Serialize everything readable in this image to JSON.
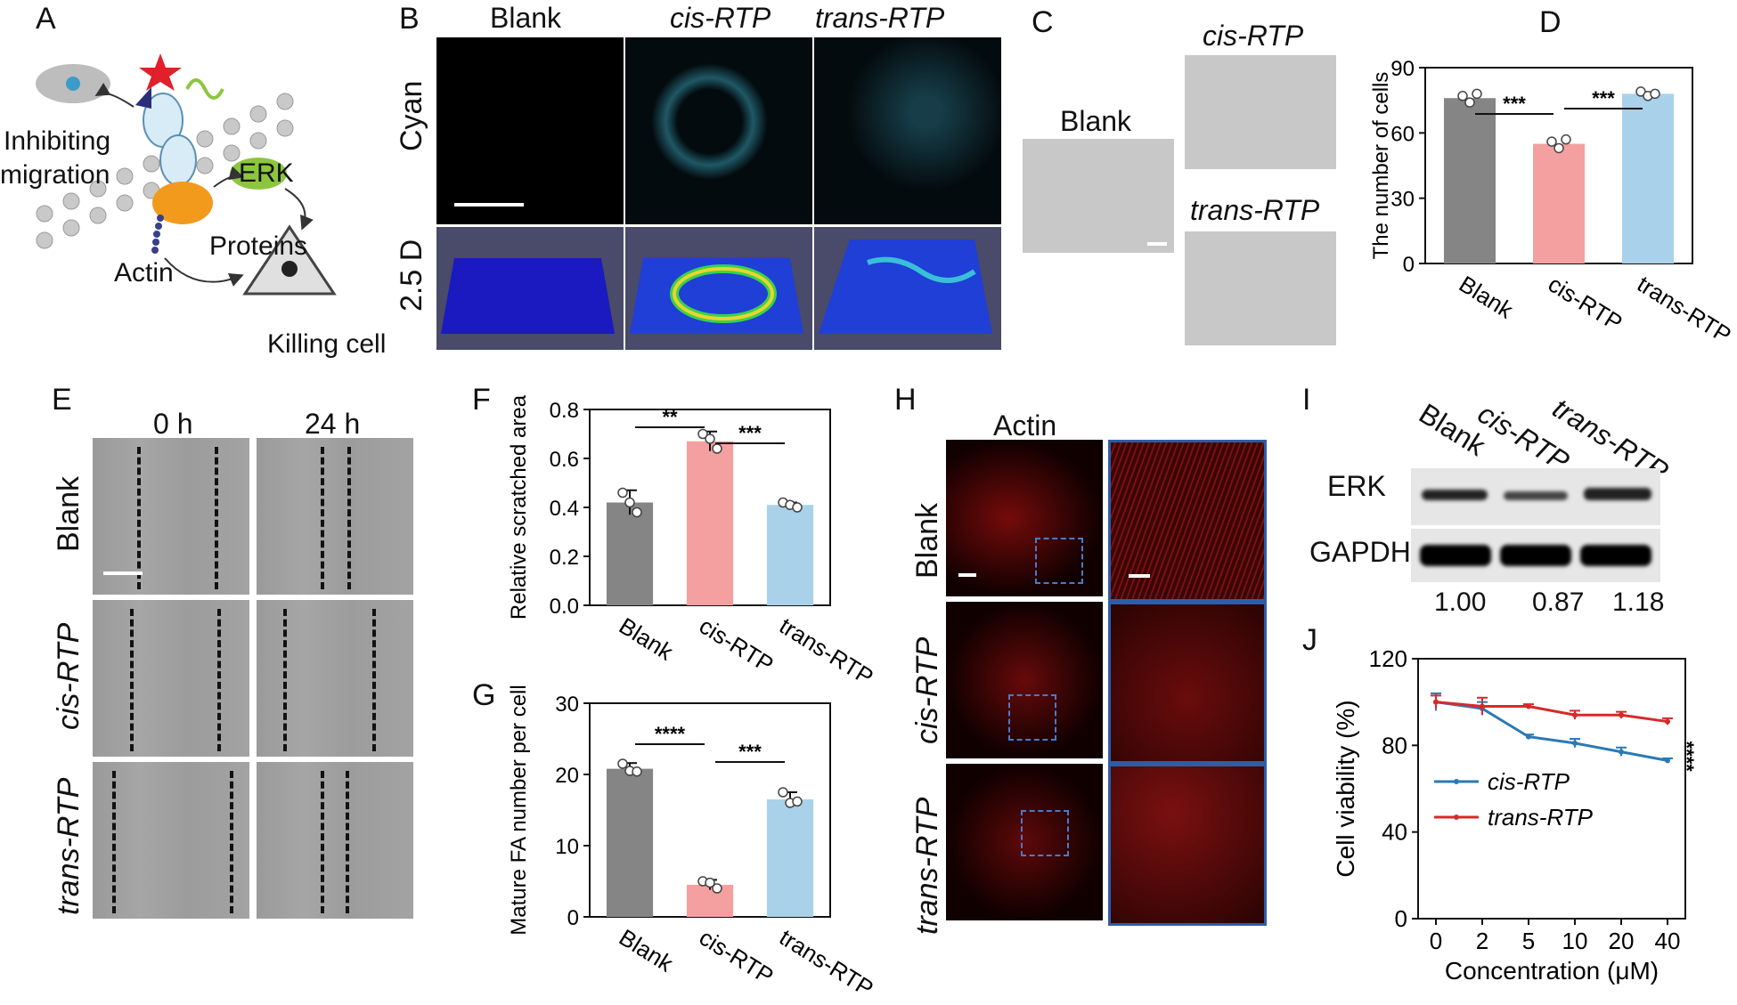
{
  "panels": {
    "A": {
      "letter": "A",
      "labels": {
        "inhibiting": "Inhibiting",
        "migration": "migration",
        "erk": "ERK",
        "proteins": "Proteins",
        "actin": "Actin",
        "killing": "Killing cell"
      }
    },
    "B": {
      "letter": "B",
      "columns": [
        "Blank",
        "cis-RTP",
        "trans-RTP"
      ],
      "rows": [
        "Cyan",
        "2.5 D"
      ]
    },
    "C": {
      "letter": "C",
      "images": [
        "Blank",
        "cis-RTP",
        "trans-RTP"
      ]
    },
    "D": {
      "letter": "D"
    },
    "E": {
      "letter": "E",
      "columns": [
        "0 h",
        "24 h"
      ],
      "rows": [
        "Blank",
        "cis-RTP",
        "trans-RTP"
      ]
    },
    "F": {
      "letter": "F"
    },
    "G": {
      "letter": "G"
    },
    "H": {
      "letter": "H",
      "title": "Actin",
      "rows": [
        "Blank",
        "cis-RTP",
        "trans-RTP"
      ]
    },
    "I": {
      "letter": "I",
      "lanes": [
        "Blank",
        "cis-RTP",
        "trans-RTP"
      ],
      "bands": [
        "ERK",
        "GAPDH"
      ],
      "ratios": [
        "1.00",
        "0.87",
        "1.18"
      ]
    },
    "J": {
      "letter": "J"
    }
  },
  "colors": {
    "blank": "#858585",
    "cis": "#f4a0a0",
    "trans": "#a9d2ea",
    "cis_line": "#2a7ab5",
    "trans_line": "#d62a2a"
  },
  "chart_data": [
    {
      "id": "D",
      "type": "bar",
      "categories": [
        "Blank",
        "cis-RTP",
        "trans-RTP"
      ],
      "values": [
        76,
        55,
        78
      ],
      "points": [
        [
          77,
          74,
          78
        ],
        [
          56,
          53,
          57
        ],
        [
          79,
          77,
          78
        ]
      ],
      "ylabel": "The number of cells",
      "ylim": [
        0,
        90
      ],
      "yticks": [
        0,
        30,
        60,
        90
      ],
      "significance": [
        {
          "from": 0,
          "to": 1,
          "label": "***"
        },
        {
          "from": 1,
          "to": 2,
          "label": "***"
        }
      ]
    },
    {
      "id": "F",
      "type": "bar",
      "categories": [
        "Blank",
        "cis-RTP",
        "trans-RTP"
      ],
      "values": [
        0.42,
        0.67,
        0.41
      ],
      "errors": [
        0.05,
        0.04,
        0.01
      ],
      "points": [
        [
          0.46,
          0.42,
          0.38
        ],
        [
          0.7,
          0.68,
          0.64
        ],
        [
          0.42,
          0.41,
          0.4
        ]
      ],
      "ylabel": "Relative scratched area",
      "ylim": [
        0,
        0.8
      ],
      "yticks": [
        "0.0",
        "0.2",
        "0.4",
        "0.6",
        "0.8"
      ],
      "significance": [
        {
          "from": 0,
          "to": 1,
          "label": "**"
        },
        {
          "from": 1,
          "to": 2,
          "label": "***"
        }
      ]
    },
    {
      "id": "G",
      "type": "bar",
      "categories": [
        "Blank",
        "cis-RTP",
        "trans-RTP"
      ],
      "values": [
        20.8,
        4.5,
        16.5
      ],
      "errors": [
        0.8,
        0.7,
        1.0
      ],
      "points": [
        [
          21.5,
          20.5,
          20.4
        ],
        [
          5.0,
          4.8,
          4.0
        ],
        [
          17.5,
          16.0,
          16.2
        ]
      ],
      "ylabel": "Mature FA number per cell",
      "ylim": [
        0,
        30
      ],
      "yticks": [
        0,
        10,
        20,
        30
      ],
      "significance": [
        {
          "from": 0,
          "to": 1,
          "label": "****"
        },
        {
          "from": 1,
          "to": 2,
          "label": "***"
        }
      ]
    },
    {
      "id": "J",
      "type": "line",
      "x": [
        "0",
        "2",
        "5",
        "10",
        "20",
        "40"
      ],
      "series": [
        {
          "name": "cis-RTP",
          "values": [
            100,
            97,
            84,
            81,
            77,
            73
          ],
          "errors": [
            4,
            3,
            1,
            2,
            2,
            1
          ]
        },
        {
          "name": "trans-RTP",
          "values": [
            100,
            98,
            98,
            94,
            94,
            91
          ],
          "errors": [
            3,
            4,
            1,
            2,
            1.5,
            1.5
          ]
        }
      ],
      "xlabel": "Concentration (μM)",
      "ylabel": "Cell viability (%)",
      "ylim": [
        0,
        120
      ],
      "yticks": [
        0,
        40,
        80,
        120
      ],
      "significance": "****"
    }
  ]
}
